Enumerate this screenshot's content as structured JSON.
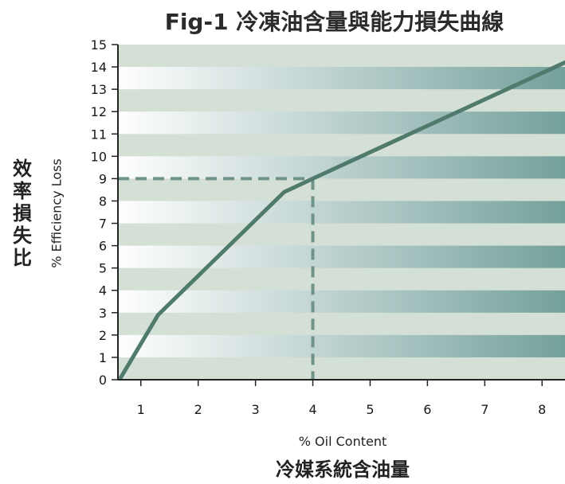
{
  "chart_data": {
    "type": "line",
    "title": "Fig-1  冷凍油含量與能力損失曲線",
    "ylabel_cn": "效率損失比",
    "ylabel_en": "% Efficiency Loss",
    "xlabel_en": "% Oil Content",
    "xlabel_cn": "冷媒系統含油量",
    "xlim": [
      0.6,
      8.4
    ],
    "ylim": [
      0,
      15
    ],
    "x_ticks": [
      1,
      2,
      3,
      4,
      5,
      6,
      7,
      8
    ],
    "y_ticks": [
      0,
      1,
      2,
      3,
      4,
      5,
      6,
      7,
      8,
      9,
      10,
      11,
      12,
      13,
      14,
      15
    ],
    "series": [
      {
        "x": [
          0.65,
          1.3,
          3.5,
          4.0,
          8.4
        ],
        "y": [
          0.1,
          2.9,
          8.4,
          9.0,
          14.2
        ]
      }
    ],
    "reference_point": {
      "x": 4,
      "y": 9
    },
    "colors": {
      "line": "#4f7a6c",
      "band_light": "#d4e0d5",
      "gradient_left": "#ffffff",
      "gradient_right": "#74a09c",
      "reference": "#6f9388"
    }
  }
}
